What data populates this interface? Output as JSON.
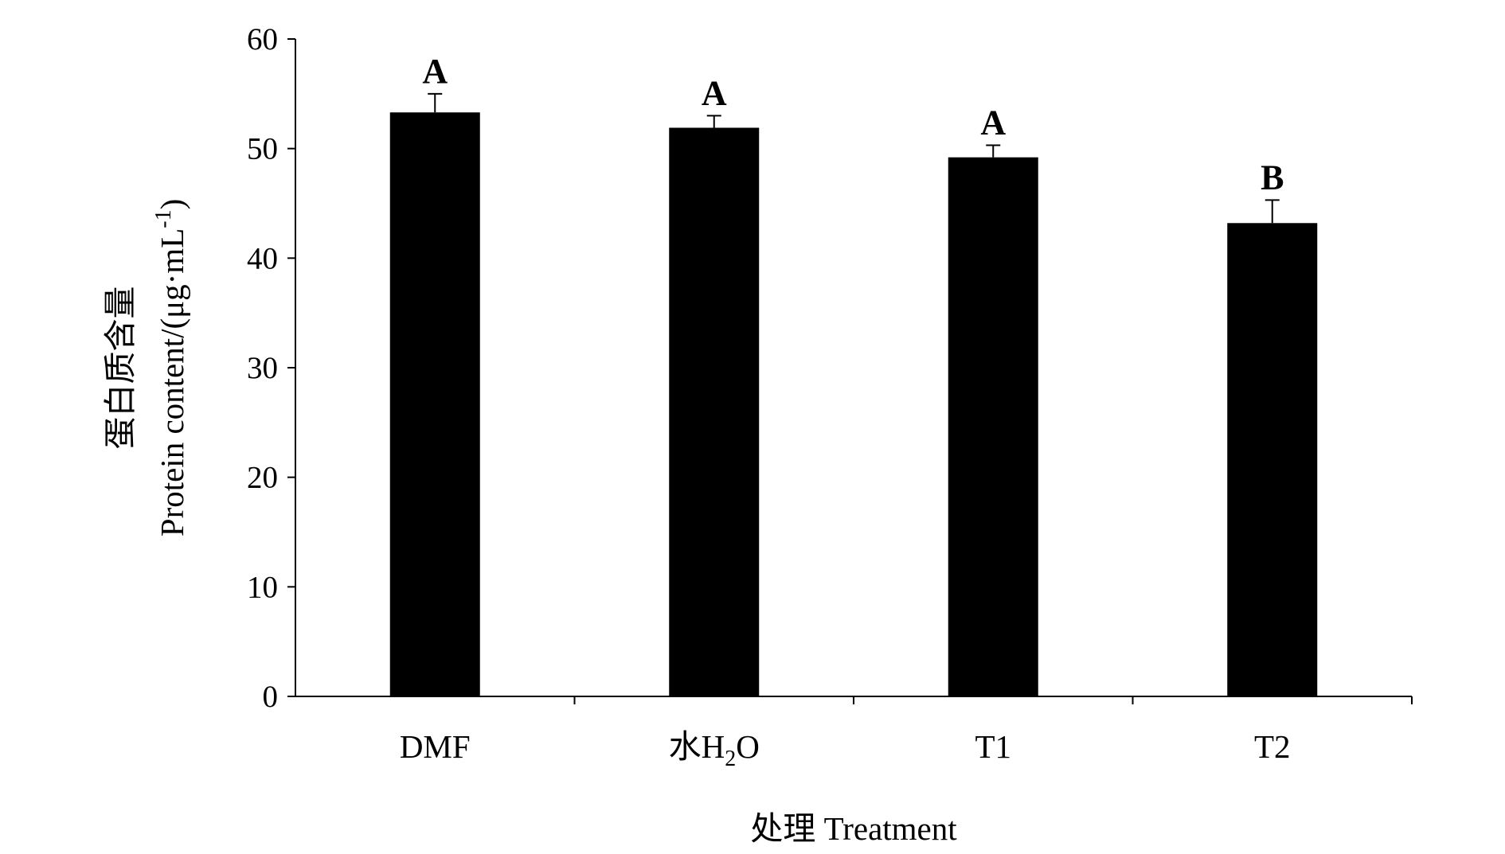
{
  "chart_data": {
    "type": "bar",
    "title": "",
    "categories": [
      "DMF",
      "水H2O",
      "T1",
      "T2"
    ],
    "category_labels": [
      {
        "main": "DMF",
        "sub": ""
      },
      {
        "main": "水H",
        "sub": "2",
        "tail": "O"
      },
      {
        "main": "T1",
        "sub": ""
      },
      {
        "main": "T2",
        "sub": ""
      }
    ],
    "values": [
      53.3,
      51.9,
      49.2,
      43.2
    ],
    "errors": [
      1.7,
      1.1,
      1.1,
      2.1
    ],
    "significance": [
      "A",
      "A",
      "A",
      "B"
    ],
    "xlabel": "处理 Treatment",
    "ylabel_cn": "蛋白质含量",
    "ylabel_en": "Protein content/(μg·mL",
    "ylabel_sup": "-1",
    "ylabel_close": ")",
    "ylim": [
      0,
      60
    ],
    "yticks": [
      0,
      10,
      20,
      30,
      40,
      50,
      60
    ],
    "grid": false,
    "bar_color": "#000000"
  }
}
